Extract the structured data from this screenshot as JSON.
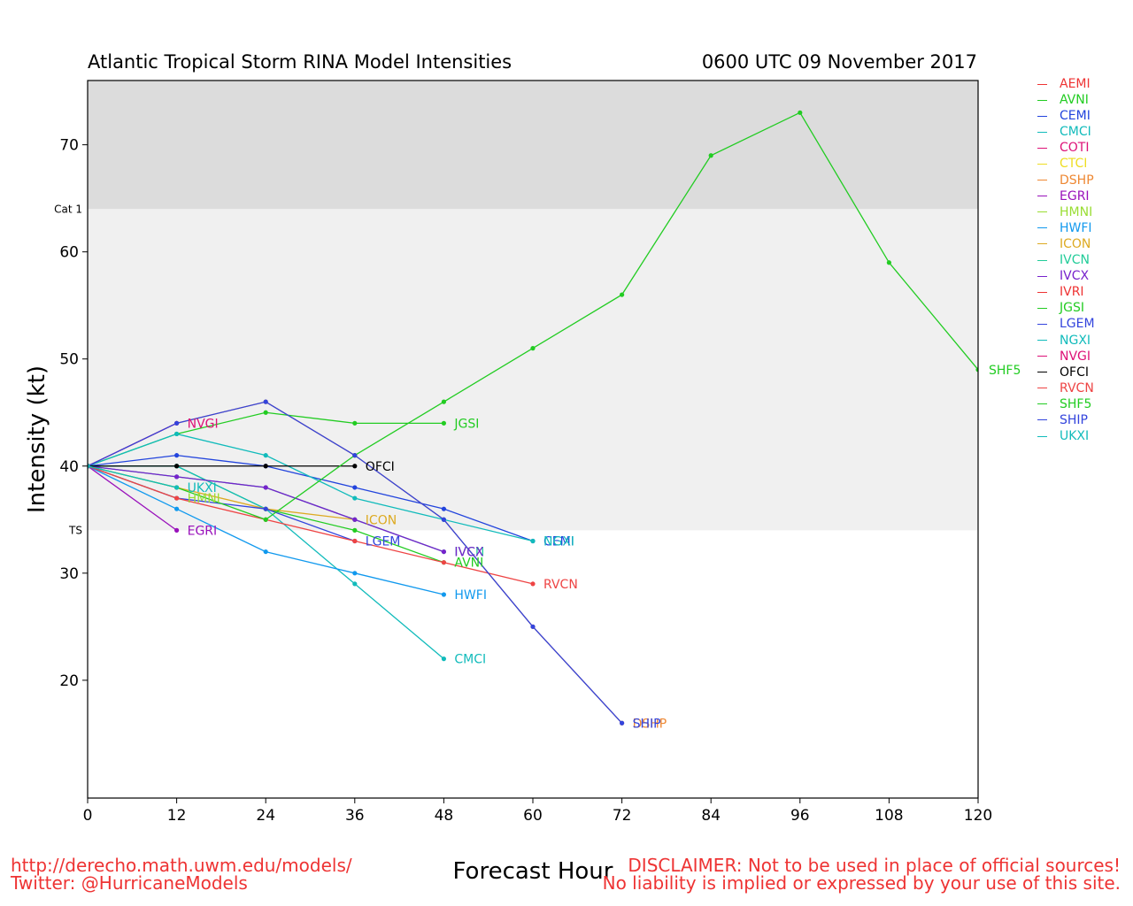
{
  "title_left": "Atlantic Tropical Storm RINA Model Intensities",
  "title_right": "0600 UTC 09 November 2017",
  "footer": {
    "url": "http://derecho.math.uwm.edu/models/",
    "twitter": "Twitter: @HurricaneModels",
    "disclaimer1": "DISCLAIMER: Not to be used in place of official sources!",
    "disclaimer2": "No liability is implied or expressed by your use of this site."
  },
  "chart_data": {
    "type": "line",
    "title": "Atlantic Tropical Storm RINA Model Intensities",
    "xlabel": "Forecast Hour",
    "ylabel": "Intensity (kt)",
    "xlim": [
      0,
      120
    ],
    "ylim": [
      9,
      76
    ],
    "xticks": [
      0,
      12,
      24,
      36,
      48,
      60,
      72,
      84,
      96,
      108,
      120
    ],
    "yticks": [
      20,
      30,
      40,
      50,
      60,
      70
    ],
    "bands": [
      {
        "from": 9,
        "to": 34,
        "color": "#ffffff",
        "label": "TS",
        "label_value": 34
      },
      {
        "from": 34,
        "to": 64,
        "color": "#f0f0f0",
        "label": "Cat 1",
        "label_value": 64
      },
      {
        "from": 64,
        "to": 76,
        "color": "#dcdcdc",
        "label": "",
        "label_value": null
      }
    ],
    "series": [
      {
        "name": "AEMI",
        "color": "#ee3333",
        "x": [],
        "values": []
      },
      {
        "name": "AVNI",
        "color": "#22cc22",
        "x": [
          0,
          12,
          24,
          36,
          48
        ],
        "values": [
          40,
          40,
          36,
          34,
          31
        ]
      },
      {
        "name": "CEMI",
        "color": "#2244dd",
        "x": [
          0,
          12,
          24,
          36,
          48,
          60
        ],
        "values": [
          40,
          41,
          40,
          38,
          36,
          33
        ]
      },
      {
        "name": "CMCI",
        "color": "#11bbbb",
        "x": [
          0,
          12,
          24,
          36,
          48
        ],
        "values": [
          40,
          40,
          36,
          29,
          22
        ]
      },
      {
        "name": "COTI",
        "color": "#dd1177",
        "x": [],
        "values": []
      },
      {
        "name": "CTCI",
        "color": "#eedd22",
        "x": [],
        "values": []
      },
      {
        "name": "DSHP",
        "color": "#ee8833",
        "x": [
          0,
          12,
          24,
          36,
          48,
          60,
          72
        ],
        "values": [
          40,
          44,
          46,
          41,
          35,
          25,
          16
        ]
      },
      {
        "name": "EGRI",
        "color": "#9911bb",
        "x": [
          0,
          12
        ],
        "values": [
          40,
          34
        ]
      },
      {
        "name": "HMNI",
        "color": "#99dd33",
        "x": [
          0,
          12
        ],
        "values": [
          40,
          37
        ]
      },
      {
        "name": "HWFI",
        "color": "#1199ee",
        "x": [
          0,
          12,
          24,
          36,
          48
        ],
        "values": [
          40,
          36,
          32,
          30,
          28
        ]
      },
      {
        "name": "ICON",
        "color": "#ddaa22",
        "x": [
          0,
          12,
          24,
          36
        ],
        "values": [
          40,
          38,
          36,
          35
        ]
      },
      {
        "name": "IVCN",
        "color": "#22cc99",
        "x": [
          0,
          12,
          24,
          36,
          48
        ],
        "values": [
          40,
          39,
          38,
          35,
          32
        ]
      },
      {
        "name": "IVCX",
        "color": "#7722cc",
        "x": [
          0,
          12,
          24,
          36,
          48
        ],
        "values": [
          40,
          39,
          38,
          35,
          32
        ]
      },
      {
        "name": "IVRI",
        "color": "#ee3333",
        "x": [],
        "values": []
      },
      {
        "name": "JGSI",
        "color": "#22cc22",
        "x": [
          0,
          12,
          24,
          36,
          48
        ],
        "values": [
          40,
          43,
          45,
          44,
          44
        ]
      },
      {
        "name": "LGEM",
        "color": "#3344dd",
        "x": [
          0,
          12,
          24,
          36
        ],
        "values": [
          40,
          37,
          36,
          33
        ]
      },
      {
        "name": "NGXI",
        "color": "#11bbbb",
        "x": [
          0,
          12,
          24,
          36,
          48,
          60
        ],
        "values": [
          40,
          43,
          41,
          37,
          35,
          33
        ]
      },
      {
        "name": "NVGI",
        "color": "#dd1177",
        "x": [
          0,
          12
        ],
        "values": [
          40,
          44
        ]
      },
      {
        "name": "OFCI",
        "color": "#000000",
        "x": [
          0,
          12,
          24,
          36
        ],
        "values": [
          40,
          40,
          40,
          40
        ]
      },
      {
        "name": "RVCN",
        "color": "#ee4444",
        "x": [
          0,
          12,
          24,
          36,
          48,
          60
        ],
        "values": [
          40,
          37,
          35,
          33,
          31,
          29
        ]
      },
      {
        "name": "SHF5",
        "color": "#22cc22",
        "x": [
          0,
          12,
          24,
          36,
          48,
          60,
          72,
          84,
          96,
          108,
          120
        ],
        "values": [
          40,
          38,
          35,
          41,
          46,
          51,
          56,
          69,
          73,
          59,
          49
        ]
      },
      {
        "name": "SHIP",
        "color": "#3344dd",
        "x": [
          0,
          12,
          24,
          36,
          48,
          60,
          72
        ],
        "values": [
          40,
          44,
          46,
          41,
          35,
          25,
          16
        ]
      },
      {
        "name": "UKXI",
        "color": "#11bbbb",
        "x": [
          0,
          12
        ],
        "values": [
          40,
          38
        ]
      }
    ]
  }
}
